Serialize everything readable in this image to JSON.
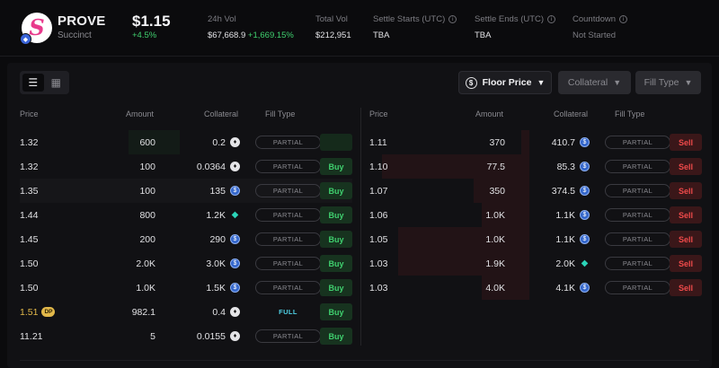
{
  "token": {
    "name": "PROVE",
    "subtitle": "Succinct",
    "price": "$1.15",
    "change": "+4.5%"
  },
  "stats": [
    {
      "label": "24h Vol",
      "value": "$67,668.9",
      "extra": "+1,669.15%",
      "info": false
    },
    {
      "label": "Total Vol",
      "value": "$212,951",
      "extra": "",
      "info": false
    },
    {
      "label": "Settle Starts (UTC)",
      "value": "TBA",
      "extra": "",
      "info": true
    },
    {
      "label": "Settle Ends (UTC)",
      "value": "TBA",
      "extra": "",
      "info": true
    },
    {
      "label": "Countdown",
      "value": "Not Started",
      "extra": "",
      "info": true
    }
  ],
  "filters": {
    "sort": "Floor Price",
    "collateral": "Collateral",
    "fill_type": "Fill Type"
  },
  "columns": {
    "price": "Price",
    "amount": "Amount",
    "collateral": "Collateral",
    "fill_type": "Fill Type"
  },
  "buy_orders": [
    {
      "price": "1.32",
      "amount": "600",
      "collateral": "0.2",
      "coin": "eth",
      "fill": "PARTIAL",
      "action": "",
      "depth": 0.32
    },
    {
      "price": "1.32",
      "amount": "100",
      "collateral": "0.0364",
      "coin": "eth",
      "fill": "PARTIAL",
      "action": "Buy",
      "depth": 0
    },
    {
      "price": "1.35",
      "amount": "100",
      "collateral": "135",
      "coin": "usdc",
      "fill": "PARTIAL",
      "action": "Buy",
      "depth": 0
    },
    {
      "price": "1.44",
      "amount": "800",
      "collateral": "1.2K",
      "coin": "gem",
      "fill": "PARTIAL",
      "action": "Buy",
      "depth": 0
    },
    {
      "price": "1.45",
      "amount": "200",
      "collateral": "290",
      "coin": "usdc",
      "fill": "PARTIAL",
      "action": "Buy",
      "depth": 0
    },
    {
      "price": "1.50",
      "amount": "2.0K",
      "collateral": "3.0K",
      "coin": "usdc",
      "fill": "PARTIAL",
      "action": "Buy",
      "depth": 0
    },
    {
      "price": "1.50",
      "amount": "1.0K",
      "collateral": "1.5K",
      "coin": "usdc",
      "fill": "PARTIAL",
      "action": "Buy",
      "depth": 0
    },
    {
      "price": "1.51",
      "badge": "DP",
      "amount": "982.1",
      "collateral": "0.4",
      "coin": "eth",
      "fill": "FULL",
      "action": "Buy",
      "depth": 0
    },
    {
      "price": "11.21",
      "amount": "5",
      "collateral": "0.0155",
      "coin": "eth",
      "fill": "PARTIAL",
      "action": "Buy",
      "depth": 0
    }
  ],
  "sell_orders": [
    {
      "price": "1.11",
      "amount": "370",
      "collateral": "410.7",
      "coin": "usdc",
      "fill": "PARTIAL",
      "action": "Sell",
      "depth": 0.05
    },
    {
      "price": "1.10",
      "amount": "77.5",
      "collateral": "85.3",
      "coin": "usdc",
      "fill": "PARTIAL",
      "action": "Sell",
      "depth": 0.92
    },
    {
      "price": "1.07",
      "amount": "350",
      "collateral": "374.5",
      "coin": "usdc",
      "fill": "PARTIAL",
      "action": "Sell",
      "depth": 0.35
    },
    {
      "price": "1.06",
      "amount": "1.0K",
      "collateral": "1.1K",
      "coin": "usdc",
      "fill": "PARTIAL",
      "action": "Sell",
      "depth": 0.3
    },
    {
      "price": "1.05",
      "amount": "1.0K",
      "collateral": "1.1K",
      "coin": "usdc",
      "fill": "PARTIAL",
      "action": "Sell",
      "depth": 0.82
    },
    {
      "price": "1.03",
      "amount": "1.9K",
      "collateral": "2.0K",
      "coin": "gem",
      "fill": "PARTIAL",
      "action": "Sell",
      "depth": 0.82
    },
    {
      "price": "1.03",
      "amount": "4.0K",
      "collateral": "4.1K",
      "coin": "usdc",
      "fill": "PARTIAL",
      "action": "Sell",
      "depth": 0.3
    }
  ],
  "colors": {
    "buy": "#3fcf6e",
    "sell": "#ef4a4a",
    "accent_gold": "#e2b84a"
  }
}
